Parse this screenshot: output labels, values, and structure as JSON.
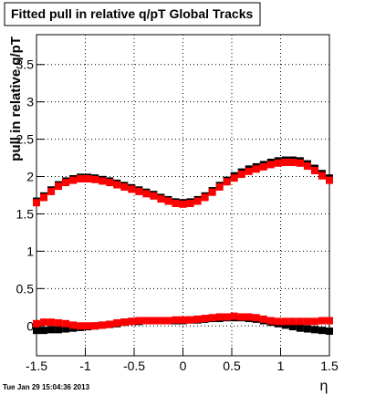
{
  "chart_data": {
    "type": "scatter",
    "title": "Fitted pull in relative q/pT  Global Tracks",
    "y_label": "pull in relative q/pT",
    "x_label": "η",
    "timestamp": "Tue Jan 29 15:04:36 2013",
    "xlim": [
      -1.5,
      1.5
    ],
    "ylim": [
      -0.4,
      3.9
    ],
    "xticks": [
      -1.5,
      -1,
      -0.5,
      0,
      0.5,
      1,
      1.5
    ],
    "yticks": [
      0,
      0.5,
      1,
      1.5,
      2,
      2.5,
      3,
      3.5
    ],
    "grid": true,
    "x": [
      -1.5,
      -1.425,
      -1.35,
      -1.275,
      -1.2,
      -1.125,
      -1.05,
      -0.975,
      -0.9,
      -0.825,
      -0.75,
      -0.675,
      -0.6,
      -0.525,
      -0.45,
      -0.375,
      -0.3,
      -0.225,
      -0.15,
      -0.075,
      0,
      0.075,
      0.15,
      0.225,
      0.3,
      0.375,
      0.45,
      0.525,
      0.6,
      0.675,
      0.75,
      0.825,
      0.9,
      0.975,
      1.05,
      1.125,
      1.2,
      1.275,
      1.35,
      1.425,
      1.5
    ],
    "series": [
      {
        "color": "#000000",
        "values": [
          1.67,
          1.74,
          1.82,
          1.89,
          1.94,
          1.97,
          1.99,
          1.99,
          1.98,
          1.96,
          1.94,
          1.91,
          1.88,
          1.85,
          1.82,
          1.79,
          1.76,
          1.72,
          1.69,
          1.66,
          1.65,
          1.66,
          1.69,
          1.74,
          1.81,
          1.88,
          1.95,
          2.01,
          2.06,
          2.1,
          2.13,
          2.16,
          2.19,
          2.21,
          2.22,
          2.22,
          2.21,
          2.17,
          2.11,
          2.04,
          1.98
        ]
      },
      {
        "color": "#ff0000",
        "values": [
          1.65,
          1.72,
          1.8,
          1.87,
          1.92,
          1.95,
          1.97,
          1.97,
          1.96,
          1.94,
          1.92,
          1.89,
          1.86,
          1.83,
          1.8,
          1.77,
          1.74,
          1.7,
          1.67,
          1.64,
          1.63,
          1.64,
          1.67,
          1.72,
          1.79,
          1.86,
          1.93,
          1.98,
          2.03,
          2.07,
          2.1,
          2.13,
          2.16,
          2.18,
          2.19,
          2.19,
          2.18,
          2.14,
          2.08,
          2.01,
          1.95
        ]
      },
      {
        "color": "#000000",
        "values": [
          -0.06,
          -0.06,
          -0.05,
          -0.05,
          -0.04,
          -0.03,
          -0.02,
          -0.01,
          0.0,
          0.01,
          0.02,
          0.03,
          0.05,
          0.06,
          0.06,
          0.07,
          0.07,
          0.07,
          0.07,
          0.07,
          0.07,
          0.08,
          0.08,
          0.09,
          0.1,
          0.1,
          0.11,
          0.11,
          0.11,
          0.1,
          0.09,
          0.07,
          0.05,
          0.03,
          0.01,
          -0.01,
          -0.03,
          -0.04,
          -0.05,
          -0.06,
          -0.07
        ]
      },
      {
        "color": "#ff0000",
        "values": [
          0.03,
          0.05,
          0.05,
          0.04,
          0.03,
          0.01,
          0.0,
          0.0,
          0.0,
          0.01,
          0.02,
          0.04,
          0.05,
          0.06,
          0.07,
          0.07,
          0.07,
          0.07,
          0.07,
          0.08,
          0.08,
          0.08,
          0.09,
          0.1,
          0.11,
          0.12,
          0.12,
          0.13,
          0.12,
          0.12,
          0.11,
          0.09,
          0.07,
          0.06,
          0.06,
          0.06,
          0.06,
          0.06,
          0.06,
          0.07,
          0.07
        ]
      }
    ]
  }
}
